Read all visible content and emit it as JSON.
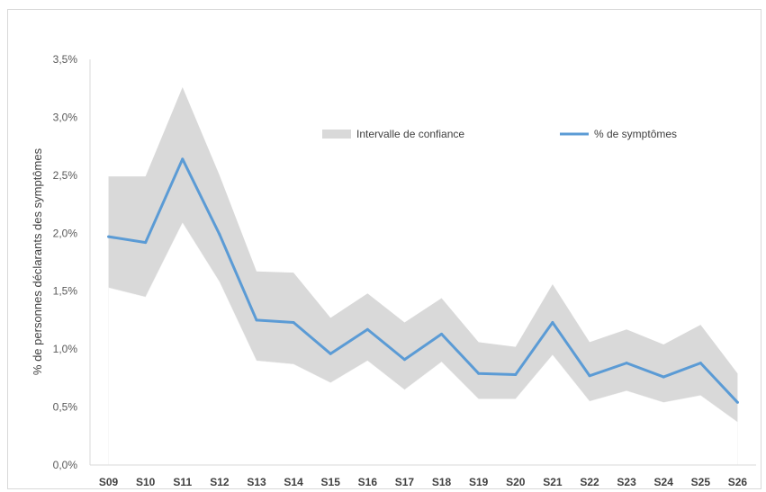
{
  "chart_data": {
    "type": "line",
    "title": "",
    "xlabel": "",
    "ylabel": "% de personnes déclarants des symptômes",
    "ylim": [
      0,
      3.5
    ],
    "yticks": [
      "0,0%",
      "0,5%",
      "1,0%",
      "1,5%",
      "2,0%",
      "2,5%",
      "3,0%",
      "3,5%"
    ],
    "categories": [
      "S09",
      "S10",
      "S11",
      "S12",
      "S13",
      "S14",
      "S15",
      "S16",
      "S17",
      "S18",
      "S19",
      "S20",
      "S21",
      "S22",
      "S23",
      "S24",
      "S25",
      "S26"
    ],
    "grid": false,
    "legend_position": "top-right",
    "series": [
      {
        "name": "% de symptômes",
        "kind": "line",
        "color": "#5b9bd5",
        "values": [
          1.97,
          1.92,
          2.64,
          1.99,
          1.25,
          1.23,
          0.96,
          1.17,
          0.91,
          1.13,
          0.79,
          0.78,
          1.23,
          0.77,
          0.88,
          0.76,
          0.88,
          0.54
        ]
      },
      {
        "name": "Intervalle de confiance",
        "kind": "band",
        "color": "#d9d9d9",
        "lower": [
          1.53,
          1.45,
          2.09,
          1.58,
          0.9,
          0.87,
          0.71,
          0.9,
          0.65,
          0.89,
          0.57,
          0.57,
          0.95,
          0.55,
          0.64,
          0.54,
          0.6,
          0.37
        ],
        "upper": [
          2.49,
          2.49,
          3.26,
          2.5,
          1.67,
          1.66,
          1.27,
          1.48,
          1.23,
          1.44,
          1.06,
          1.02,
          1.56,
          1.06,
          1.17,
          1.04,
          1.21,
          0.79
        ]
      }
    ]
  }
}
